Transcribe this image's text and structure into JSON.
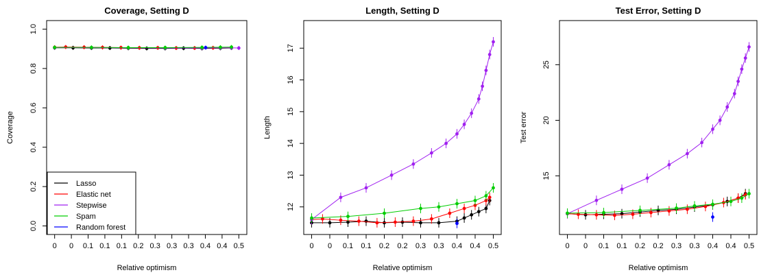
{
  "chart_data": [
    {
      "type": "line",
      "title": "Coverage, Setting D",
      "xlabel": "Relative optimism",
      "ylabel": "Coverage",
      "xlim": [
        0,
        0.5
      ],
      "ylim": [
        0,
        1
      ],
      "xtick_labels": [
        "0",
        "0",
        "0.1",
        "0.1",
        "0.1",
        "0.2",
        "0.3",
        "0.3",
        "0.3",
        "0.4",
        "0.4",
        "0.5"
      ],
      "ytick_labels": [
        "0.0",
        "0.2",
        "0.4",
        "0.6",
        "0.8",
        "1.0"
      ],
      "legend": {
        "position": "bottom-left",
        "entries": [
          "Lasso",
          "Elastic net",
          "Stepwise",
          "Spam",
          "Random forest"
        ]
      },
      "series": [
        {
          "name": "Lasso",
          "color": "#000000",
          "x": [
            0,
            0.05,
            0.1,
            0.15,
            0.2,
            0.25,
            0.3,
            0.35,
            0.4,
            0.45,
            0.48
          ],
          "y": [
            0.905,
            0.905,
            0.904,
            0.904,
            0.903,
            0.902,
            0.902,
            0.903,
            0.902,
            0.903,
            0.904
          ]
        },
        {
          "name": "Elastic net",
          "color": "#ff0000",
          "x": [
            0,
            0.03,
            0.08,
            0.13,
            0.18,
            0.23,
            0.28,
            0.33,
            0.38,
            0.43,
            0.48
          ],
          "y": [
            0.908,
            0.909,
            0.908,
            0.907,
            0.906,
            0.905,
            0.905,
            0.904,
            0.904,
            0.905,
            0.906
          ]
        },
        {
          "name": "Stepwise",
          "color": "#a020f0",
          "x": [
            0,
            0.1,
            0.2,
            0.3,
            0.4,
            0.45,
            0.48,
            0.5
          ],
          "y": [
            0.906,
            0.906,
            0.905,
            0.904,
            0.904,
            0.905,
            0.905,
            0.904
          ]
        },
        {
          "name": "Spam",
          "color": "#00cd00",
          "x": [
            0,
            0.1,
            0.2,
            0.3,
            0.4,
            0.45,
            0.48
          ],
          "y": [
            0.907,
            0.907,
            0.906,
            0.906,
            0.907,
            0.908,
            0.909
          ]
        },
        {
          "name": "Random forest",
          "color": "#0000ff",
          "x": [
            0.41
          ],
          "y": [
            0.906
          ]
        }
      ]
    },
    {
      "type": "line",
      "title": "Length, Setting D",
      "xlabel": "Relative optimism",
      "ylabel": "Length",
      "xlim": [
        0,
        0.5
      ],
      "ylim": [
        11.4,
        17.6
      ],
      "yticks": [
        12,
        13,
        14,
        15,
        16,
        17
      ],
      "xtick_labels": [
        "0",
        "0",
        "0.1",
        "0.1",
        "0.2",
        "0.2",
        "0.3",
        "0.3",
        "0.4",
        "0.4",
        "0.5"
      ],
      "ytick_labels": [
        "12",
        "13",
        "14",
        "15",
        "16",
        "17"
      ],
      "series": [
        {
          "name": "Lasso",
          "color": "#000000",
          "x": [
            0,
            0.05,
            0.1,
            0.15,
            0.2,
            0.25,
            0.3,
            0.35,
            0.4,
            0.42,
            0.44,
            0.46,
            0.48,
            0.49
          ],
          "y": [
            11.5,
            11.5,
            11.52,
            11.55,
            11.5,
            11.52,
            11.5,
            11.5,
            11.55,
            11.65,
            11.75,
            11.85,
            11.95,
            12.2
          ]
        },
        {
          "name": "Elastic net",
          "color": "#ff0000",
          "x": [
            0,
            0.03,
            0.08,
            0.13,
            0.18,
            0.23,
            0.28,
            0.33,
            0.38,
            0.42,
            0.45,
            0.48,
            0.49
          ],
          "y": [
            11.6,
            11.62,
            11.58,
            11.55,
            11.5,
            11.52,
            11.55,
            11.62,
            11.8,
            11.95,
            12.05,
            12.2,
            12.3
          ]
        },
        {
          "name": "Stepwise",
          "color": "#a020f0",
          "x": [
            0,
            0.08,
            0.15,
            0.22,
            0.28,
            0.33,
            0.37,
            0.4,
            0.42,
            0.44,
            0.46,
            0.47,
            0.48,
            0.49,
            0.5
          ],
          "y": [
            11.6,
            12.3,
            12.6,
            13.0,
            13.35,
            13.7,
            14.0,
            14.3,
            14.6,
            14.95,
            15.4,
            15.8,
            16.3,
            16.8,
            17.2
          ]
        },
        {
          "name": "Spam",
          "color": "#00cd00",
          "x": [
            0,
            0.1,
            0.2,
            0.3,
            0.35,
            0.4,
            0.45,
            0.48,
            0.5
          ],
          "y": [
            11.65,
            11.7,
            11.8,
            11.95,
            12.0,
            12.1,
            12.2,
            12.35,
            12.6
          ]
        },
        {
          "name": "Random forest",
          "color": "#0000ff",
          "x": [
            0.4
          ],
          "y": [
            11.48
          ]
        }
      ]
    },
    {
      "type": "line",
      "title": "Test Error, Setting D",
      "xlabel": "Relative optimism",
      "ylabel": "Test error",
      "xlim": [
        0,
        0.5
      ],
      "ylim": [
        10.5,
        28.2
      ],
      "yticks": [
        15,
        20,
        25
      ],
      "xtick_labels": [
        "0",
        "0",
        "0.1",
        "0.1",
        "0.2",
        "0.2",
        "0.3",
        "0.3",
        "0.4",
        "0.4",
        "0.5"
      ],
      "ytick_labels": [
        "15",
        "20",
        "25"
      ],
      "series": [
        {
          "name": "Lasso",
          "color": "#000000",
          "x": [
            0,
            0.05,
            0.1,
            0.15,
            0.2,
            0.25,
            0.3,
            0.35,
            0.4,
            0.44,
            0.47,
            0.49
          ],
          "y": [
            11.6,
            11.5,
            11.55,
            11.6,
            11.75,
            11.9,
            12.0,
            12.2,
            12.4,
            12.7,
            13.0,
            13.4
          ]
        },
        {
          "name": "Elastic net",
          "color": "#ff0000",
          "x": [
            0,
            0.03,
            0.08,
            0.13,
            0.18,
            0.23,
            0.28,
            0.33,
            0.38,
            0.43,
            0.47,
            0.49
          ],
          "y": [
            11.6,
            11.55,
            11.5,
            11.45,
            11.55,
            11.7,
            11.85,
            12.0,
            12.25,
            12.6,
            13.0,
            13.3
          ]
        },
        {
          "name": "Stepwise",
          "color": "#a020f0",
          "x": [
            0,
            0.08,
            0.15,
            0.22,
            0.28,
            0.33,
            0.37,
            0.4,
            0.42,
            0.44,
            0.46,
            0.47,
            0.48,
            0.49,
            0.5
          ],
          "y": [
            11.6,
            12.8,
            13.8,
            14.8,
            16.0,
            17.0,
            18.0,
            19.2,
            20.0,
            21.2,
            22.4,
            23.5,
            24.6,
            25.6,
            26.6
          ]
        },
        {
          "name": "Spam",
          "color": "#00cd00",
          "x": [
            0,
            0.1,
            0.2,
            0.3,
            0.35,
            0.4,
            0.45,
            0.48,
            0.5
          ],
          "y": [
            11.65,
            11.7,
            11.9,
            12.1,
            12.3,
            12.45,
            12.7,
            13.0,
            13.4
          ]
        },
        {
          "name": "Random forest",
          "color": "#0000ff",
          "x": [
            0.4
          ],
          "y": [
            11.3
          ]
        }
      ]
    }
  ]
}
